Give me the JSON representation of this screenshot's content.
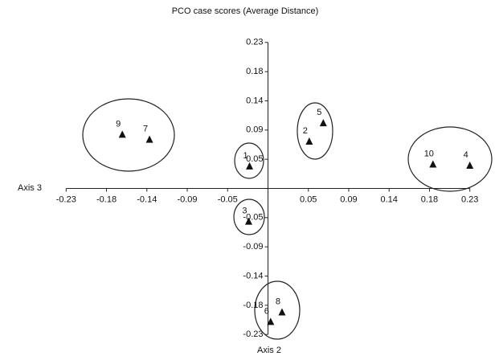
{
  "chart_data": {
    "type": "scatter",
    "title": "PCO case scores (Average Distance)",
    "x_label": "Axis 3",
    "y_label": "Axis 2",
    "labels": [
      "9",
      "7",
      "1",
      "3",
      "2",
      "5",
      "10",
      "4",
      "8",
      "6"
    ],
    "x": [
      -0.166,
      -0.135,
      -0.021,
      -0.022,
      0.047,
      0.063,
      0.188,
      0.23,
      0.016,
      0.003
    ],
    "y": [
      0.085,
      0.077,
      0.035,
      -0.052,
      0.074,
      0.103,
      0.038,
      0.036,
      -0.195,
      -0.21
    ],
    "color": "#111111",
    "xlim": [
      -0.255,
      0.255
    ],
    "ylim": [
      -0.25,
      0.25
    ],
    "xticks": [
      {
        "value": -0.23,
        "label": "-0.23"
      },
      {
        "value": -0.184,
        "label": "-0.18"
      },
      {
        "value": -0.138,
        "label": "-0.14"
      },
      {
        "value": -0.092,
        "label": "-0.09"
      },
      {
        "value": -0.046,
        "label": "-0.05"
      },
      {
        "value": 0.046,
        "label": "0.05"
      },
      {
        "value": 0.092,
        "label": "0.09"
      },
      {
        "value": 0.138,
        "label": "0.14"
      },
      {
        "value": 0.184,
        "label": "0.18"
      },
      0.23
    ],
    "yticks": [
      0.23,
      {
        "value": 0.184,
        "label": "0.18"
      },
      {
        "value": 0.138,
        "label": "0.14"
      },
      {
        "value": 0.092,
        "label": "0.09"
      },
      {
        "value": 0.046,
        "label": "0.05"
      },
      {
        "value": -0.046,
        "label": "-0.05"
      },
      {
        "value": -0.092,
        "label": "-0.09"
      },
      {
        "value": -0.138,
        "label": "-0.14"
      },
      {
        "value": -0.184,
        "label": "-0.18"
      },
      -0.23
    ]
  }
}
